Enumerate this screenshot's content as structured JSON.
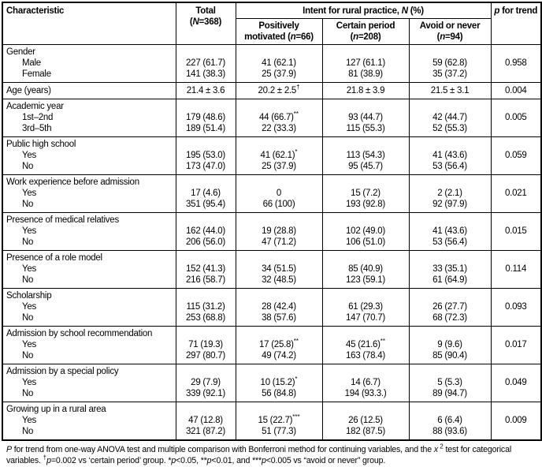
{
  "table": {
    "header": {
      "characteristic": "Characteristic",
      "total_line1": "Total",
      "total_line2_parts": [
        {
          "t": "("
        },
        {
          "t": "N",
          "i": true
        },
        {
          "t": "=368)"
        }
      ],
      "intent_parts": [
        {
          "t": "Intent for rural practice, "
        },
        {
          "t": "N",
          "i": true
        },
        {
          "t": " (%)"
        }
      ],
      "col_pm_parts": [
        {
          "t": "Positively motivated ("
        },
        {
          "t": "n",
          "i": true
        },
        {
          "t": "=66)"
        }
      ],
      "col_cp_parts": [
        {
          "t": "Certain period ("
        },
        {
          "t": "n",
          "i": true
        },
        {
          "t": "=208)"
        }
      ],
      "col_an_parts": [
        {
          "t": "Avoid or never ("
        },
        {
          "t": "n",
          "i": true
        },
        {
          "t": "=94)"
        }
      ],
      "p_trend_parts": [
        {
          "t": "p",
          "i": true
        },
        {
          "t": " for trend"
        }
      ]
    },
    "rows": [
      {
        "label": "Gender",
        "sub": [
          "Male",
          "Female"
        ],
        "total": [
          "227 (61.7)",
          "141 (38.3)"
        ],
        "pm": [
          "41 (62.1)",
          "25 (37.9)"
        ],
        "cp": [
          "127 (61.1)",
          "81 (38.9)"
        ],
        "an": [
          "59 (62.8)",
          "35 (37.2)"
        ],
        "p": "0.958"
      },
      {
        "label": "Age (years)",
        "total": "21.4 ± 3.6",
        "pm": "20.2 ± 2.5†",
        "cp": "21.8 ± 3.9",
        "an": "21.5 ± 3.1",
        "p": "0.004"
      },
      {
        "label": "Academic year",
        "sub": [
          "1st–2nd",
          "3rd–5th"
        ],
        "total": [
          "179 (48.6)",
          "189 (51.4)"
        ],
        "pm": [
          "44 (66.7)**",
          "22 (33.3)"
        ],
        "cp": [
          "93 (44.7)",
          "115 (55.3)"
        ],
        "an": [
          "42 (44.7)",
          "52 (55.3)"
        ],
        "p": "0.005"
      },
      {
        "label": "Public high school",
        "sub": [
          "Yes",
          "No"
        ],
        "total": [
          "195 (53.0)",
          "173 (47.0)"
        ],
        "pm": [
          "41 (62.1)*",
          "25 (37.9)"
        ],
        "cp": [
          "113 (54.3)",
          "95 (45.7)"
        ],
        "an": [
          "41 (43.6)",
          "53 (56.4)"
        ],
        "p": "0.059"
      },
      {
        "label": "Work experience before admission",
        "sub": [
          "Yes",
          "No"
        ],
        "total": [
          "17 (4.6)",
          "351 (95.4)"
        ],
        "pm": [
          "0",
          "66 (100)"
        ],
        "cp": [
          "15 (7.2)",
          "193 (92.8)"
        ],
        "an": [
          "2 (2.1)",
          "92 (97.9)"
        ],
        "p": "0.021"
      },
      {
        "label": "Presence of medical relatives",
        "sub": [
          "Yes",
          "No"
        ],
        "total": [
          "162 (44.0)",
          "206 (56.0)"
        ],
        "pm": [
          "19 (28.8)",
          "47 (71.2)"
        ],
        "cp": [
          "102 (49.0)",
          "106 (51.0)"
        ],
        "an": [
          "41 (43.6)",
          "53 (56.4)"
        ],
        "p": "0.015"
      },
      {
        "label": "Presence of a role model",
        "sub": [
          "Yes",
          "No"
        ],
        "total": [
          "152 (41.3)",
          "216 (58.7)"
        ],
        "pm": [
          "34 (51.5)",
          "32 (48.5)"
        ],
        "cp": [
          "85 (40.9)",
          "123 (59.1)"
        ],
        "an": [
          "33 (35.1)",
          "61 (64.9)"
        ],
        "p": "0.114"
      },
      {
        "label": "Scholarship",
        "sub": [
          "Yes",
          "No"
        ],
        "total": [
          "115 (31.2)",
          "253 (68.8)"
        ],
        "pm": [
          "28 (42.4)",
          "38 (57.6)"
        ],
        "cp": [
          "61 (29.3)",
          "147 (70.7)"
        ],
        "an": [
          "26 (27.7)",
          "68 (72.3)"
        ],
        "p": "0.093"
      },
      {
        "label": "Admission by school recommendation",
        "sub": [
          "Yes",
          "No"
        ],
        "total": [
          "71 (19.3)",
          "297 (80.7)"
        ],
        "pm": [
          "17 (25.8)**",
          "49 (74.2)"
        ],
        "cp": [
          "45 (21.6)**",
          "163 (78.4)"
        ],
        "an": [
          "9 (9.6)",
          "85 (90.4)"
        ],
        "p": "0.017"
      },
      {
        "label": "Admission by a special policy",
        "sub": [
          "Yes",
          "No"
        ],
        "total": [
          "29 (7.9)",
          "339 (92.1)"
        ],
        "pm": [
          "10 (15.2)*",
          "56 (84.8)"
        ],
        "cp": [
          "14 (6.7)",
          "194 (93.3.)"
        ],
        "an": [
          "5 (5.3)",
          "89 (94.7)"
        ],
        "p": "0.049"
      },
      {
        "label": "Growing up in a rural area",
        "sub": [
          "Yes",
          "No"
        ],
        "total": [
          "47 (12.8)",
          "321 (87.2)"
        ],
        "pm": [
          "15 (22.7)***",
          "51 (77.3)"
        ],
        "cp": [
          "26 (12.5)",
          "182 (87.5)"
        ],
        "an": [
          "6 (6.4)",
          "88 (93.6)"
        ],
        "p": "0.009"
      }
    ]
  },
  "footnote_parts": [
    {
      "t": "P",
      "i": true
    },
    {
      "t": " for trend from one-way ANOVA test and multiple comparison with Bonferroni method for continuing variables, and the "
    },
    {
      "t": "x",
      "i": true
    },
    {
      "t": " 2",
      "sup": true
    },
    {
      "t": " test for categorical variables. "
    },
    {
      "t": "†",
      "sup": true
    },
    {
      "t": "p",
      "i": true
    },
    {
      "t": "=0.002 vs ‘certain period’ group. *"
    },
    {
      "t": "p",
      "i": true
    },
    {
      "t": "<0.05, **"
    },
    {
      "t": "p",
      "i": true
    },
    {
      "t": "<0.01, and ***"
    },
    {
      "t": "p",
      "i": true
    },
    {
      "t": "<0.005 vs “avoid or never” group."
    }
  ]
}
